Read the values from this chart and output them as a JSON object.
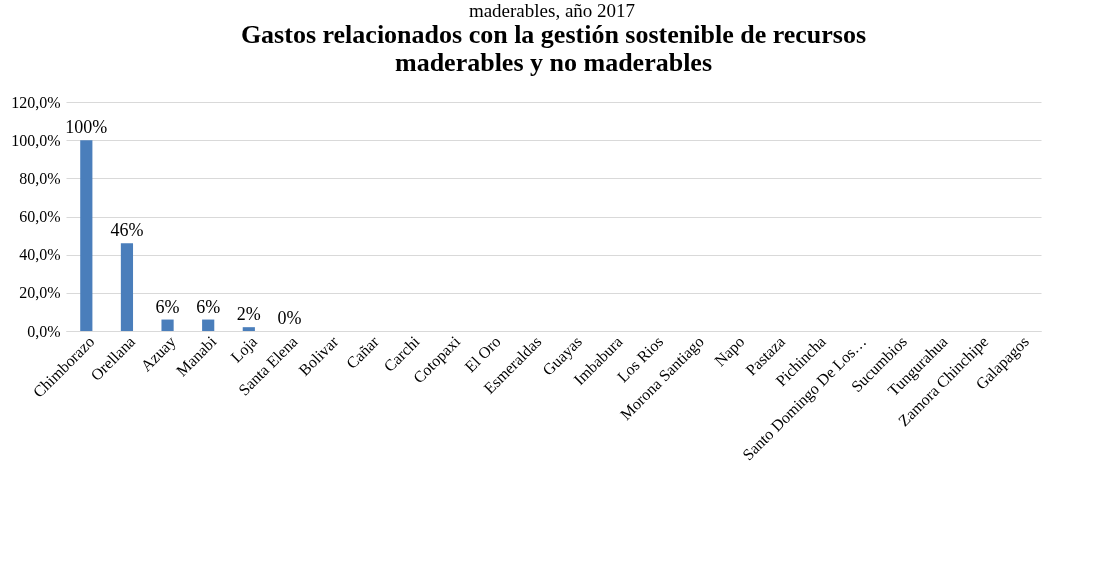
{
  "chart_data": {
    "type": "bar",
    "title": "Gastos relacionados con la gestión sostenible de recursos maderables y no maderables",
    "annotations": [
      "maderables, año 2017"
    ],
    "categories": [
      "Chimborazo",
      "Orellana",
      "Azuay",
      "Manabi",
      "Loja",
      "Santa Elena",
      "Bolivar",
      "Cañar",
      "Carchi",
      "Cotopaxi",
      "El Oro",
      "Esmeraldas",
      "Guayas",
      "Imbabura",
      "Los Rios",
      "Morona Santiago",
      "Napo",
      "Pastaza",
      "Pichincha",
      "Santo Domingo De Los…",
      "Sucumbios",
      "Tungurahua",
      "Zamora Chinchipe",
      "Galapagos"
    ],
    "values": [
      100,
      46,
      6,
      6,
      2,
      0,
      null,
      null,
      null,
      null,
      null,
      null,
      null,
      null,
      null,
      null,
      null,
      null,
      null,
      null,
      null,
      null,
      null,
      null
    ],
    "value_labels": [
      "100%",
      "46%",
      "6%",
      "6%",
      "2%",
      "0%",
      null,
      null,
      null,
      null,
      null,
      null,
      null,
      null,
      null,
      null,
      null,
      null,
      null,
      null,
      null,
      null,
      null,
      null
    ],
    "color": "#4a7ebb",
    "ylim": [
      0,
      120
    ],
    "yticks": [
      {
        "value": 0,
        "label": "0,0%"
      },
      {
        "value": 20,
        "label": "20,0%"
      },
      {
        "value": 40,
        "label": "40,0%"
      },
      {
        "value": 60,
        "label": "60,0%"
      },
      {
        "value": 80,
        "label": "80,0%"
      },
      {
        "value": 100,
        "label": "100,0%"
      },
      {
        "value": 120,
        "label": "120,0%"
      }
    ],
    "grid": "y"
  }
}
